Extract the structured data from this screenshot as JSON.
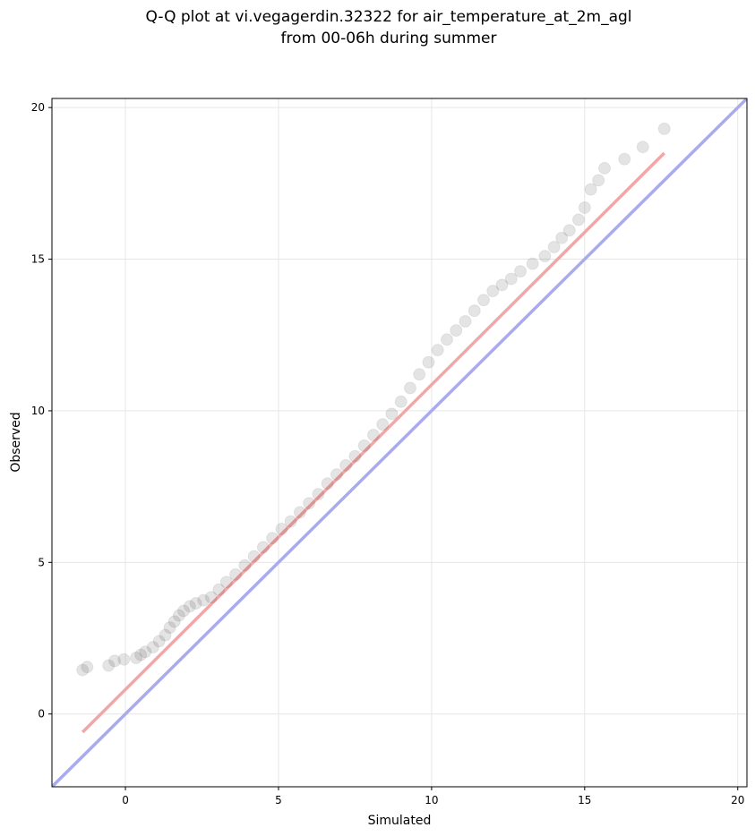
{
  "chart_data": {
    "type": "scatter",
    "title_lines": [
      "Q-Q plot at vi.vegagerdin.32322 for air_temperature_at_2m_agl",
      "from 00-06h during summer"
    ],
    "xlabel": "Simulated",
    "ylabel": "Observed",
    "xlim": [
      -2.4,
      20.3
    ],
    "ylim": [
      -2.4,
      20.3
    ],
    "xticks": [
      0,
      5,
      10,
      15,
      20
    ],
    "yticks": [
      0,
      5,
      10,
      15,
      20
    ],
    "grid": true,
    "legend": "none",
    "colors": {
      "points": "#222222",
      "identity_line": "#aaaaee",
      "fit_line": "#f4a6a6"
    },
    "identity_line": {
      "x": [
        -2.4,
        20.3
      ],
      "y": [
        -2.4,
        20.3
      ]
    },
    "fit_line": {
      "x": [
        -1.4,
        17.6
      ],
      "y": [
        -0.6,
        18.5
      ]
    },
    "points": {
      "x": [
        -1.4,
        -1.25,
        -0.55,
        -0.35,
        -0.05,
        0.35,
        0.5,
        0.65,
        0.9,
        1.1,
        1.3,
        1.45,
        1.6,
        1.75,
        1.9,
        2.1,
        2.3,
        2.55,
        2.8,
        3.05,
        3.3,
        3.6,
        3.9,
        4.2,
        4.5,
        4.8,
        5.1,
        5.4,
        5.7,
        6.0,
        6.3,
        6.6,
        6.9,
        7.2,
        7.5,
        7.8,
        8.1,
        8.4,
        8.7,
        9.0,
        9.3,
        9.6,
        9.9,
        10.2,
        10.5,
        10.8,
        11.1,
        11.4,
        11.7,
        12.0,
        12.3,
        12.6,
        12.9,
        13.3,
        13.7,
        14.0,
        14.25,
        14.5,
        14.8,
        15.0,
        15.2,
        15.45,
        15.65,
        16.3,
        16.9,
        17.6
      ],
      "y": [
        1.45,
        1.55,
        1.6,
        1.75,
        1.8,
        1.85,
        1.95,
        2.05,
        2.2,
        2.4,
        2.6,
        2.85,
        3.05,
        3.25,
        3.4,
        3.55,
        3.65,
        3.75,
        3.85,
        4.1,
        4.35,
        4.6,
        4.9,
        5.2,
        5.5,
        5.8,
        6.1,
        6.35,
        6.65,
        6.95,
        7.25,
        7.6,
        7.9,
        8.2,
        8.5,
        8.85,
        9.2,
        9.55,
        9.9,
        10.3,
        10.75,
        11.2,
        11.6,
        12.0,
        12.35,
        12.65,
        12.95,
        13.3,
        13.65,
        13.95,
        14.15,
        14.35,
        14.6,
        14.85,
        15.1,
        15.4,
        15.7,
        15.95,
        16.3,
        16.7,
        17.3,
        17.6,
        18.0,
        18.3,
        18.7,
        19.3
      ]
    }
  }
}
